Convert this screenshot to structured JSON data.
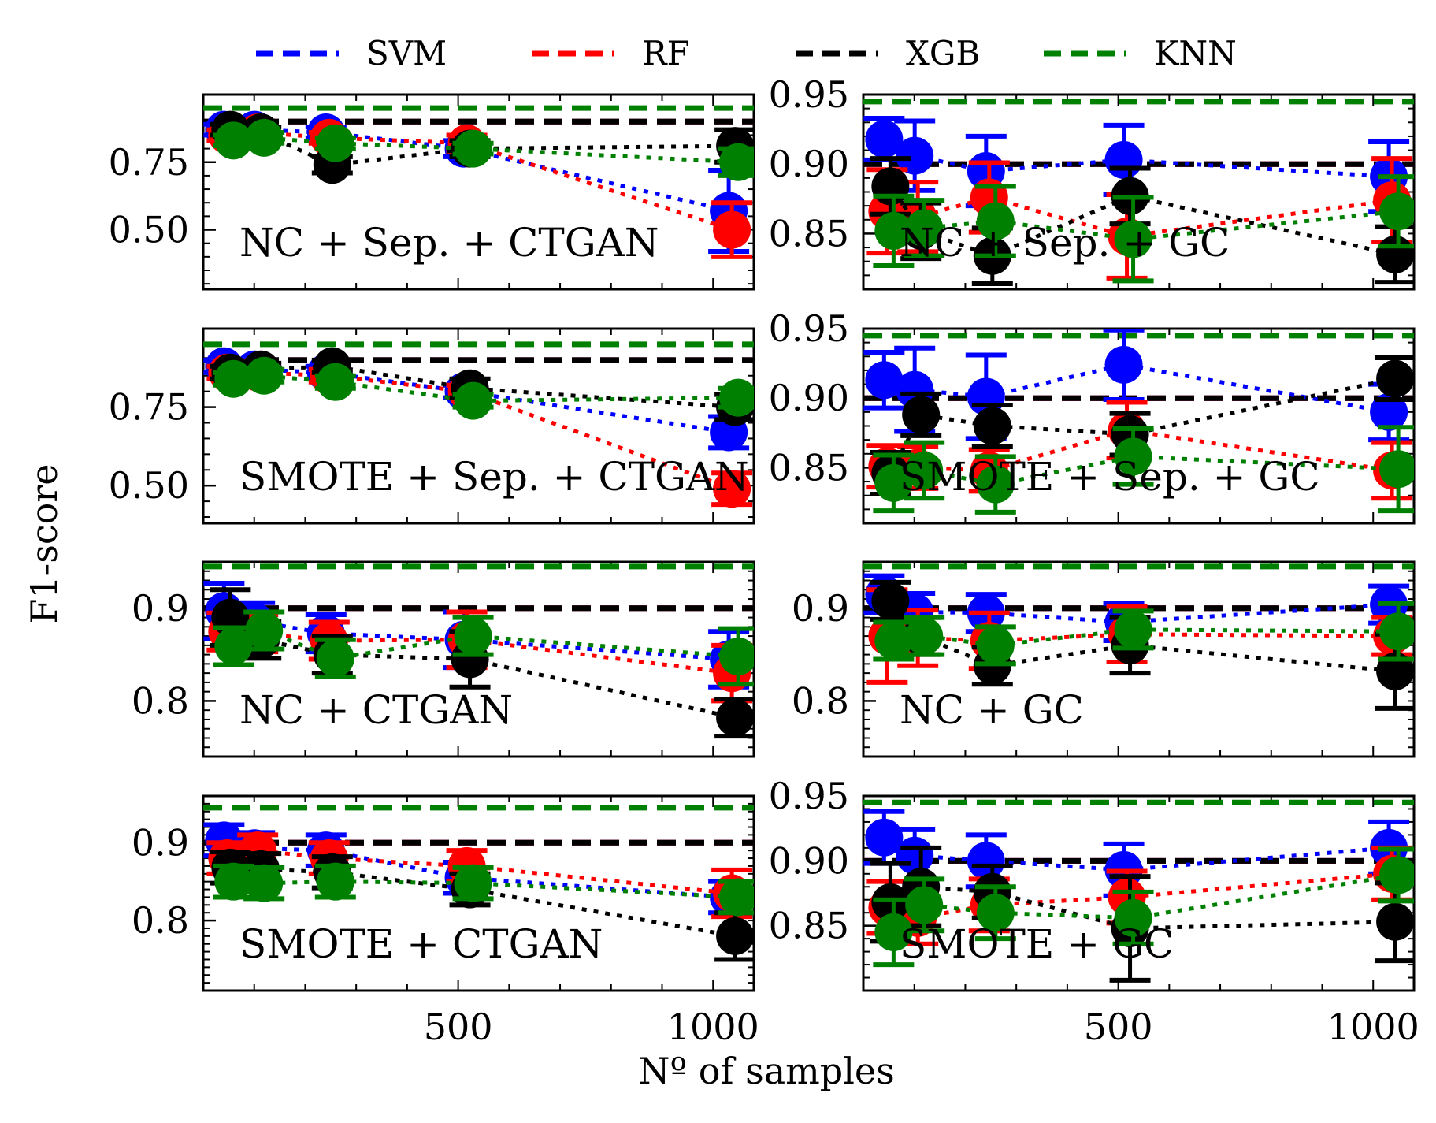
{
  "legend": [
    {
      "label": "SVM",
      "color": "#0000ff"
    },
    {
      "label": "RF",
      "color": "#ff0000"
    },
    {
      "label": "XGB",
      "color": "#000000"
    },
    {
      "label": "KNN",
      "color": "#008000"
    }
  ],
  "xlabel": "Nº of samples",
  "ylabel": "F1-score",
  "x_ticks": [
    "500",
    "1000"
  ],
  "chart_data": [
    {
      "type": "line",
      "panel": "row1-left",
      "title": "NC + Sep. + CTGAN",
      "ylim": [
        0.28,
        1.0
      ],
      "yticks": [
        "0.75",
        "0.50"
      ],
      "xlim": [
        0,
        1080
      ],
      "x": [
        50,
        110,
        250,
        520,
        1040
      ],
      "baselines": {
        "SVM": 0.9,
        "RF": 0.9,
        "XGB": 0.9,
        "KNN": 0.95
      },
      "series": [
        {
          "name": "SVM",
          "values": [
            0.87,
            0.87,
            0.86,
            0.8,
            0.57
          ],
          "err": [
            0.02,
            0.02,
            0.02,
            0.03,
            0.15
          ]
        },
        {
          "name": "RF",
          "values": [
            0.85,
            0.86,
            0.84,
            0.82,
            0.5
          ],
          "err": [
            0.02,
            0.02,
            0.02,
            0.03,
            0.1
          ]
        },
        {
          "name": "XGB",
          "values": [
            0.87,
            0.86,
            0.74,
            0.8,
            0.81
          ],
          "err": [
            0.02,
            0.02,
            0.03,
            0.03,
            0.06
          ]
        },
        {
          "name": "KNN",
          "values": [
            0.83,
            0.84,
            0.82,
            0.8,
            0.75
          ],
          "err": [
            0.02,
            0.02,
            0.02,
            0.02,
            0.05
          ]
        }
      ]
    },
    {
      "type": "line",
      "panel": "row1-right",
      "title": "NC + Sep. + GC",
      "ylim": [
        0.81,
        0.95
      ],
      "yticks": [
        "0.95",
        "0.90",
        "0.85"
      ],
      "xlim": [
        0,
        1080
      ],
      "x": [
        50,
        110,
        250,
        520,
        1040
      ],
      "baselines": {
        "SVM": 0.9,
        "RF": 0.9,
        "XGB": 0.9,
        "KNN": 0.945
      },
      "series": [
        {
          "name": "SVM",
          "values": [
            0.918,
            0.906,
            0.895,
            0.903,
            0.891
          ],
          "err": [
            0.015,
            0.025,
            0.025,
            0.025,
            0.025
          ]
        },
        {
          "name": "RF",
          "values": [
            0.866,
            0.862,
            0.876,
            0.848,
            0.874
          ],
          "err": [
            0.03,
            0.025,
            0.025,
            0.03,
            0.03
          ]
        },
        {
          "name": "XGB",
          "values": [
            0.884,
            0.852,
            0.834,
            0.877,
            0.835
          ],
          "err": [
            0.02,
            0.02,
            0.02,
            0.02,
            0.02
          ]
        },
        {
          "name": "KNN",
          "values": [
            0.852,
            0.854,
            0.859,
            0.846,
            0.866
          ],
          "err": [
            0.025,
            0.02,
            0.025,
            0.03,
            0.025
          ]
        }
      ]
    },
    {
      "type": "line",
      "panel": "row2-left",
      "title": "SMOTE + Sep. + CTGAN",
      "ylim": [
        0.38,
        1.0
      ],
      "yticks": [
        "0.75",
        "0.50"
      ],
      "xlim": [
        0,
        1080
      ],
      "x": [
        50,
        110,
        250,
        520,
        1040
      ],
      "baselines": {
        "SVM": 0.9,
        "RF": 0.9,
        "XGB": 0.9,
        "KNN": 0.95
      },
      "series": [
        {
          "name": "SVM",
          "values": [
            0.88,
            0.87,
            0.86,
            0.8,
            0.67
          ],
          "err": [
            0.02,
            0.02,
            0.02,
            0.02,
            0.05
          ]
        },
        {
          "name": "RF",
          "values": [
            0.86,
            0.86,
            0.85,
            0.8,
            0.49
          ],
          "err": [
            0.02,
            0.02,
            0.02,
            0.02,
            0.05
          ]
        },
        {
          "name": "XGB",
          "values": [
            0.86,
            0.87,
            0.88,
            0.81,
            0.75
          ],
          "err": [
            0.02,
            0.02,
            0.02,
            0.03,
            0.04
          ]
        },
        {
          "name": "KNN",
          "values": [
            0.84,
            0.85,
            0.83,
            0.77,
            0.78
          ],
          "err": [
            0.02,
            0.02,
            0.02,
            0.02,
            0.03
          ]
        }
      ]
    },
    {
      "type": "line",
      "panel": "row2-right",
      "title": "SMOTE + Sep. + GC",
      "ylim": [
        0.81,
        0.95
      ],
      "yticks": [
        "0.95",
        "0.90",
        "0.85"
      ],
      "xlim": [
        0,
        1080
      ],
      "x": [
        50,
        110,
        250,
        520,
        1040
      ],
      "baselines": {
        "SVM": 0.9,
        "RF": 0.9,
        "XGB": 0.9,
        "KNN": 0.945
      },
      "series": [
        {
          "name": "SVM",
          "values": [
            0.913,
            0.906,
            0.901,
            0.924,
            0.89
          ],
          "err": [
            0.02,
            0.03,
            0.03,
            0.025,
            0.02
          ]
        },
        {
          "name": "RF",
          "values": [
            0.851,
            0.85,
            0.848,
            0.877,
            0.848
          ],
          "err": [
            0.015,
            0.015,
            0.015,
            0.02,
            0.02
          ]
        },
        {
          "name": "XGB",
          "values": [
            0.846,
            0.888,
            0.88,
            0.874,
            0.914
          ],
          "err": [
            0.015,
            0.015,
            0.015,
            0.015,
            0.015
          ]
        },
        {
          "name": "KNN",
          "values": [
            0.839,
            0.848,
            0.838,
            0.858,
            0.849
          ],
          "err": [
            0.02,
            0.02,
            0.02,
            0.02,
            0.03
          ]
        }
      ]
    },
    {
      "type": "line",
      "panel": "row3-left",
      "title": "NC + CTGAN",
      "ylim": [
        0.74,
        0.95
      ],
      "yticks": [
        "0.9",
        "0.8"
      ],
      "xlim": [
        0,
        1080
      ],
      "x": [
        50,
        110,
        250,
        520,
        1040
      ],
      "baselines": {
        "SVM": 0.9,
        "RF": 0.9,
        "XGB": 0.9,
        "KNN": 0.945
      },
      "series": [
        {
          "name": "SVM",
          "values": [
            0.897,
            0.886,
            0.873,
            0.866,
            0.845
          ],
          "err": [
            0.03,
            0.02,
            0.02,
            0.03,
            0.03
          ]
        },
        {
          "name": "RF",
          "values": [
            0.875,
            0.873,
            0.865,
            0.866,
            0.83
          ],
          "err": [
            0.02,
            0.02,
            0.02,
            0.03,
            0.03
          ]
        },
        {
          "name": "XGB",
          "values": [
            0.89,
            0.866,
            0.85,
            0.845,
            0.782
          ],
          "err": [
            0.03,
            0.02,
            0.02,
            0.03,
            0.02
          ]
        },
        {
          "name": "KNN",
          "values": [
            0.859,
            0.876,
            0.846,
            0.87,
            0.848
          ],
          "err": [
            0.02,
            0.02,
            0.02,
            0.02,
            0.03
          ]
        }
      ]
    },
    {
      "type": "line",
      "panel": "row3-right",
      "title": "NC + GC",
      "ylim": [
        0.74,
        0.95
      ],
      "yticks": [
        "0.9",
        "0.8"
      ],
      "xlim": [
        0,
        1080
      ],
      "x": [
        50,
        110,
        250,
        520,
        1040
      ],
      "baselines": {
        "SVM": 0.9,
        "RF": 0.9,
        "XGB": 0.9,
        "KNN": 0.945
      },
      "series": [
        {
          "name": "SVM",
          "values": [
            0.915,
            0.896,
            0.895,
            0.885,
            0.904
          ],
          "err": [
            0.02,
            0.02,
            0.02,
            0.02,
            0.02
          ]
        },
        {
          "name": "RF",
          "values": [
            0.87,
            0.868,
            0.865,
            0.872,
            0.87
          ],
          "err": [
            0.05,
            0.03,
            0.03,
            0.03,
            0.02
          ]
        },
        {
          "name": "XGB",
          "values": [
            0.908,
            0.87,
            0.838,
            0.86,
            0.832
          ],
          "err": [
            0.02,
            0.02,
            0.02,
            0.03,
            0.04
          ]
        },
        {
          "name": "KNN",
          "values": [
            0.865,
            0.87,
            0.86,
            0.877,
            0.875
          ],
          "err": [
            0.02,
            0.02,
            0.02,
            0.02,
            0.03
          ]
        }
      ]
    },
    {
      "type": "line",
      "panel": "row4-left",
      "title": "SMOTE + CTGAN",
      "ylim": [
        0.71,
        0.96
      ],
      "yticks": [
        "0.9",
        "0.8"
      ],
      "xlim": [
        0,
        1080
      ],
      "x": [
        50,
        110,
        250,
        520,
        1040
      ],
      "baselines": {
        "SVM": 0.9,
        "RF": 0.9,
        "XGB": 0.9,
        "KNN": 0.945
      },
      "series": [
        {
          "name": "SVM",
          "values": [
            0.903,
            0.893,
            0.89,
            0.855,
            0.83
          ],
          "err": [
            0.02,
            0.02,
            0.02,
            0.02,
            0.02
          ]
        },
        {
          "name": "RF",
          "values": [
            0.88,
            0.89,
            0.88,
            0.87,
            0.835
          ],
          "err": [
            0.02,
            0.02,
            0.02,
            0.02,
            0.03
          ]
        },
        {
          "name": "XGB",
          "values": [
            0.868,
            0.866,
            0.862,
            0.84,
            0.78
          ],
          "err": [
            0.02,
            0.02,
            0.02,
            0.02,
            0.03
          ]
        },
        {
          "name": "KNN",
          "values": [
            0.85,
            0.848,
            0.85,
            0.848,
            0.83
          ],
          "err": [
            0.02,
            0.02,
            0.02,
            0.02,
            0.02
          ]
        }
      ]
    },
    {
      "type": "line",
      "panel": "row4-right",
      "title": "SMOTE + GC",
      "ylim": [
        0.8,
        0.95
      ],
      "yticks": [
        "0.95",
        "0.90",
        "0.85"
      ],
      "xlim": [
        0,
        1080
      ],
      "x": [
        50,
        110,
        250,
        520,
        1040
      ],
      "baselines": {
        "SVM": 0.9,
        "RF": 0.9,
        "XGB": 0.9,
        "KNN": 0.945
      },
      "series": [
        {
          "name": "SVM",
          "values": [
            0.918,
            0.904,
            0.9,
            0.893,
            0.91
          ],
          "err": [
            0.02,
            0.02,
            0.02,
            0.02,
            0.02
          ]
        },
        {
          "name": "RF",
          "values": [
            0.864,
            0.856,
            0.866,
            0.872,
            0.89
          ],
          "err": [
            0.02,
            0.02,
            0.02,
            0.02,
            0.02
          ]
        },
        {
          "name": "XGB",
          "values": [
            0.868,
            0.88,
            0.876,
            0.848,
            0.853
          ],
          "err": [
            0.03,
            0.03,
            0.02,
            0.04,
            0.03
          ]
        },
        {
          "name": "KNN",
          "values": [
            0.845,
            0.866,
            0.86,
            0.856,
            0.889
          ],
          "err": [
            0.025,
            0.02,
            0.02,
            0.02,
            0.02
          ]
        }
      ]
    }
  ]
}
